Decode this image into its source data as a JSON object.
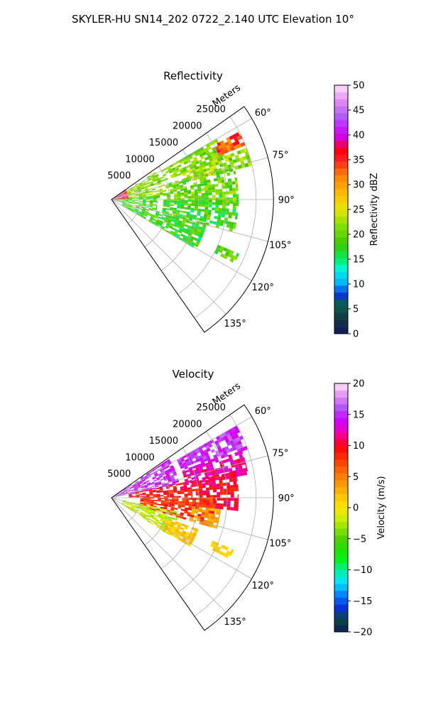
{
  "figure": {
    "suptitle": "SKYLER-HU  SN14_202  0722_2.140 UTC Elevation 10°"
  },
  "chart_data": [
    {
      "type": "heatmap",
      "projection": "polar-sector",
      "title": "Reflectivity",
      "radial_label": "Meters",
      "radial_ticks": [
        5000,
        10000,
        15000,
        20000,
        25000
      ],
      "radial_tick_labels": [
        "5000",
        "10000",
        "15000",
        "20000",
        "25000"
      ],
      "range_max_m": 28000,
      "azimuth_range_deg": [
        55,
        145
      ],
      "azimuth_ticks": [
        60,
        75,
        90,
        105,
        120,
        135
      ],
      "azimuth_tick_labels": [
        "60°",
        "75°",
        "90°",
        "105°",
        "120°",
        "135°"
      ],
      "grid": true,
      "colorbar": {
        "label": "Reflectivity dBZ",
        "min": 0,
        "max": 50,
        "ticks": [
          0,
          5,
          10,
          15,
          20,
          25,
          30,
          35,
          40,
          45,
          50
        ],
        "tick_labels": [
          "0",
          "5",
          "10",
          "15",
          "20",
          "25",
          "30",
          "35",
          "40",
          "45",
          "50"
        ],
        "stops": [
          [
            0,
            "#0b1a5c"
          ],
          [
            3,
            "#123a40"
          ],
          [
            6,
            "#0a6050"
          ],
          [
            8,
            "#0a2fe0"
          ],
          [
            10,
            "#00b0ff"
          ],
          [
            13,
            "#00f5e0"
          ],
          [
            15,
            "#00f060"
          ],
          [
            18,
            "#3ec800"
          ],
          [
            22,
            "#88e000"
          ],
          [
            25,
            "#e8e800"
          ],
          [
            28,
            "#ffc000"
          ],
          [
            32,
            "#ff8000"
          ],
          [
            35,
            "#ff2020"
          ],
          [
            37,
            "#ff0010"
          ],
          [
            40,
            "#d000ff"
          ],
          [
            44,
            "#b060ff"
          ],
          [
            47,
            "#e890f0"
          ],
          [
            50,
            "#ffe0ff"
          ]
        ]
      },
      "regions": [
        {
          "az": [
            55,
            90
          ],
          "r": [
            0,
            3000
          ],
          "value": [
            33,
            40
          ]
        },
        {
          "az": [
            58,
            88
          ],
          "r": [
            3000,
            9000
          ],
          "value": [
            18,
            25
          ]
        },
        {
          "az": [
            86,
            104
          ],
          "r": [
            0,
            8000
          ],
          "value": [
            14,
            22
          ]
        },
        {
          "az": [
            60,
            70
          ],
          "r": [
            8000,
            21000
          ],
          "value": [
            18,
            24
          ]
        },
        {
          "az": [
            62,
            68
          ],
          "r": [
            20000,
            25000
          ],
          "value": [
            30,
            38
          ]
        },
        {
          "az": [
            69,
            76
          ],
          "r": [
            13000,
            25000
          ],
          "value": [
            18,
            26
          ]
        },
        {
          "az": [
            74,
            92
          ],
          "r": [
            9000,
            22000
          ],
          "value": [
            16,
            24
          ]
        },
        {
          "az": [
            90,
            104
          ],
          "r": [
            9000,
            22000
          ],
          "value": [
            14,
            22
          ]
        },
        {
          "az": [
            104,
            120
          ],
          "r": [
            2000,
            17000
          ],
          "value": [
            14,
            22
          ]
        },
        {
          "az": [
            113,
            117
          ],
          "r": [
            20000,
            24000
          ],
          "value": [
            16,
            22
          ]
        }
      ]
    },
    {
      "type": "heatmap",
      "projection": "polar-sector",
      "title": "Velocity",
      "radial_label": "Meters",
      "radial_ticks": [
        5000,
        10000,
        15000,
        20000,
        25000
      ],
      "radial_tick_labels": [
        "5000",
        "10000",
        "15000",
        "20000",
        "25000"
      ],
      "range_max_m": 28000,
      "azimuth_range_deg": [
        55,
        145
      ],
      "azimuth_ticks": [
        60,
        75,
        90,
        105,
        120,
        135
      ],
      "azimuth_tick_labels": [
        "60°",
        "75°",
        "90°",
        "105°",
        "120°",
        "135°"
      ],
      "grid": true,
      "colorbar": {
        "label": "Velocity (m/s)",
        "min": -20,
        "max": 20,
        "ticks": [
          -20,
          -15,
          -10,
          -5,
          0,
          5,
          10,
          15,
          20
        ],
        "tick_labels": [
          "−20",
          "−15",
          "−10",
          "−5",
          "0",
          "5",
          "10",
          "15",
          "20"
        ],
        "stops": [
          [
            -20,
            "#0b1a5c"
          ],
          [
            -18,
            "#0a4a40"
          ],
          [
            -16,
            "#0a2fe0"
          ],
          [
            -14,
            "#0080ff"
          ],
          [
            -12,
            "#00e5ff"
          ],
          [
            -10,
            "#00f0a0"
          ],
          [
            -8,
            "#00f000"
          ],
          [
            -5,
            "#50d000"
          ],
          [
            -2,
            "#c0f000"
          ],
          [
            0,
            "#ffe800"
          ],
          [
            2,
            "#ffc000"
          ],
          [
            5,
            "#ff8000"
          ],
          [
            8,
            "#ff3000"
          ],
          [
            10,
            "#ff0010"
          ],
          [
            12,
            "#f000b0"
          ],
          [
            14,
            "#d000ff"
          ],
          [
            16,
            "#b050ff"
          ],
          [
            18,
            "#e090f0"
          ],
          [
            20,
            "#ffe0ff"
          ]
        ]
      },
      "regions": [
        {
          "az": [
            56,
            78
          ],
          "r": [
            0,
            12000
          ],
          "value": [
            13,
            17
          ]
        },
        {
          "az": [
            78,
            90
          ],
          "r": [
            3000,
            14000
          ],
          "value": [
            7,
            11
          ]
        },
        {
          "az": [
            60,
            70
          ],
          "r": [
            13000,
            25000
          ],
          "value": [
            13,
            17
          ]
        },
        {
          "az": [
            70,
            80
          ],
          "r": [
            13000,
            24000
          ],
          "value": [
            10,
            14
          ]
        },
        {
          "az": [
            78,
            96
          ],
          "r": [
            14000,
            22000
          ],
          "value": [
            8,
            12
          ]
        },
        {
          "az": [
            90,
            106
          ],
          "r": [
            5000,
            18000
          ],
          "value": [
            6,
            10
          ]
        },
        {
          "az": [
            96,
            106
          ],
          "r": [
            14000,
            19000
          ],
          "value": [
            2,
            5
          ]
        },
        {
          "az": [
            102,
            122
          ],
          "r": [
            2000,
            12000
          ],
          "value": [
            -4,
            0
          ]
        },
        {
          "az": [
            110,
            122
          ],
          "r": [
            10000,
            16000
          ],
          "value": [
            0,
            3
          ]
        },
        {
          "az": [
            113,
            117
          ],
          "r": [
            19000,
            23000
          ],
          "value": [
            0,
            2
          ]
        }
      ]
    }
  ]
}
